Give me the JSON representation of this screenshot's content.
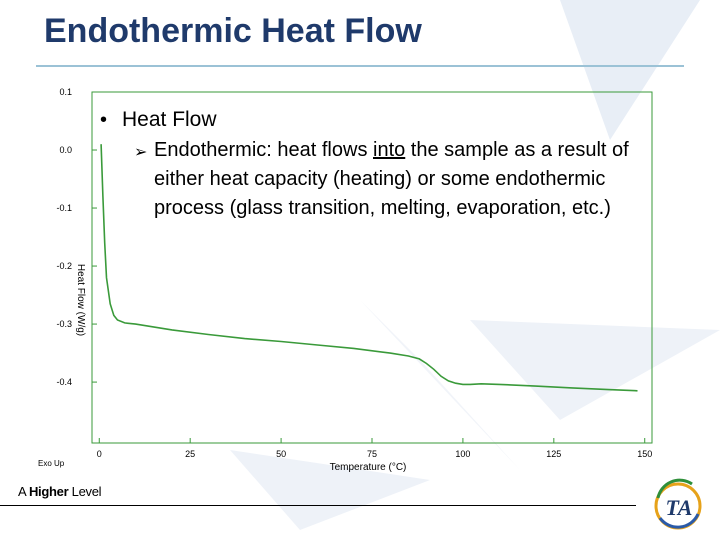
{
  "slide": {
    "title": "Endothermic Heat Flow",
    "bullet1": "Heat Flow",
    "bullet2_pre": "Endothermic:  heat flows ",
    "bullet2_underlined": "into",
    "bullet2_post": " the sample as a result of either heat capacity (heating) or some endothermic process (glass transition, melting, evaporation, etc.)",
    "footer_brand_pre": "A ",
    "footer_brand_bold": "Higher",
    "footer_brand_post": " Level",
    "logo_text": "TA"
  },
  "colors": {
    "title": "#1f3a6b",
    "curve": "#3a9a3a",
    "axis": "#3a9a3a",
    "rule": "#9bc2d6"
  },
  "chart_data": {
    "type": "line",
    "xlabel": "Temperature (°C)",
    "ylabel": "Heat Flow (W/g)",
    "corner_label": "Exo Up",
    "xlim": [
      -2,
      152
    ],
    "ylim": [
      -0.505,
      0.1
    ],
    "xticks": [
      0,
      25,
      50,
      75,
      100,
      125,
      150
    ],
    "yticks": [
      0.1,
      0.0,
      -0.1,
      -0.2,
      -0.3,
      -0.4
    ],
    "ytick_labels": [
      "0.1",
      "0.0",
      "-0.1",
      "-0.2",
      "-0.3",
      "-0.4"
    ],
    "series": [
      {
        "x": [
          0.5,
          1.0,
          1.5,
          2.0,
          3.0,
          4.0,
          5.0,
          7.0,
          10,
          20,
          30,
          40,
          50,
          60,
          70,
          80,
          85,
          88,
          90,
          92,
          94,
          96,
          98,
          100,
          102,
          105,
          110,
          120,
          130,
          140,
          148
        ],
        "y": [
          0.01,
          -0.08,
          -0.16,
          -0.22,
          -0.265,
          -0.285,
          -0.293,
          -0.298,
          -0.3,
          -0.31,
          -0.318,
          -0.325,
          -0.33,
          -0.336,
          -0.342,
          -0.35,
          -0.355,
          -0.36,
          -0.368,
          -0.378,
          -0.39,
          -0.398,
          -0.402,
          -0.404,
          -0.404,
          -0.403,
          -0.404,
          -0.407,
          -0.41,
          -0.413,
          -0.415
        ]
      }
    ]
  }
}
